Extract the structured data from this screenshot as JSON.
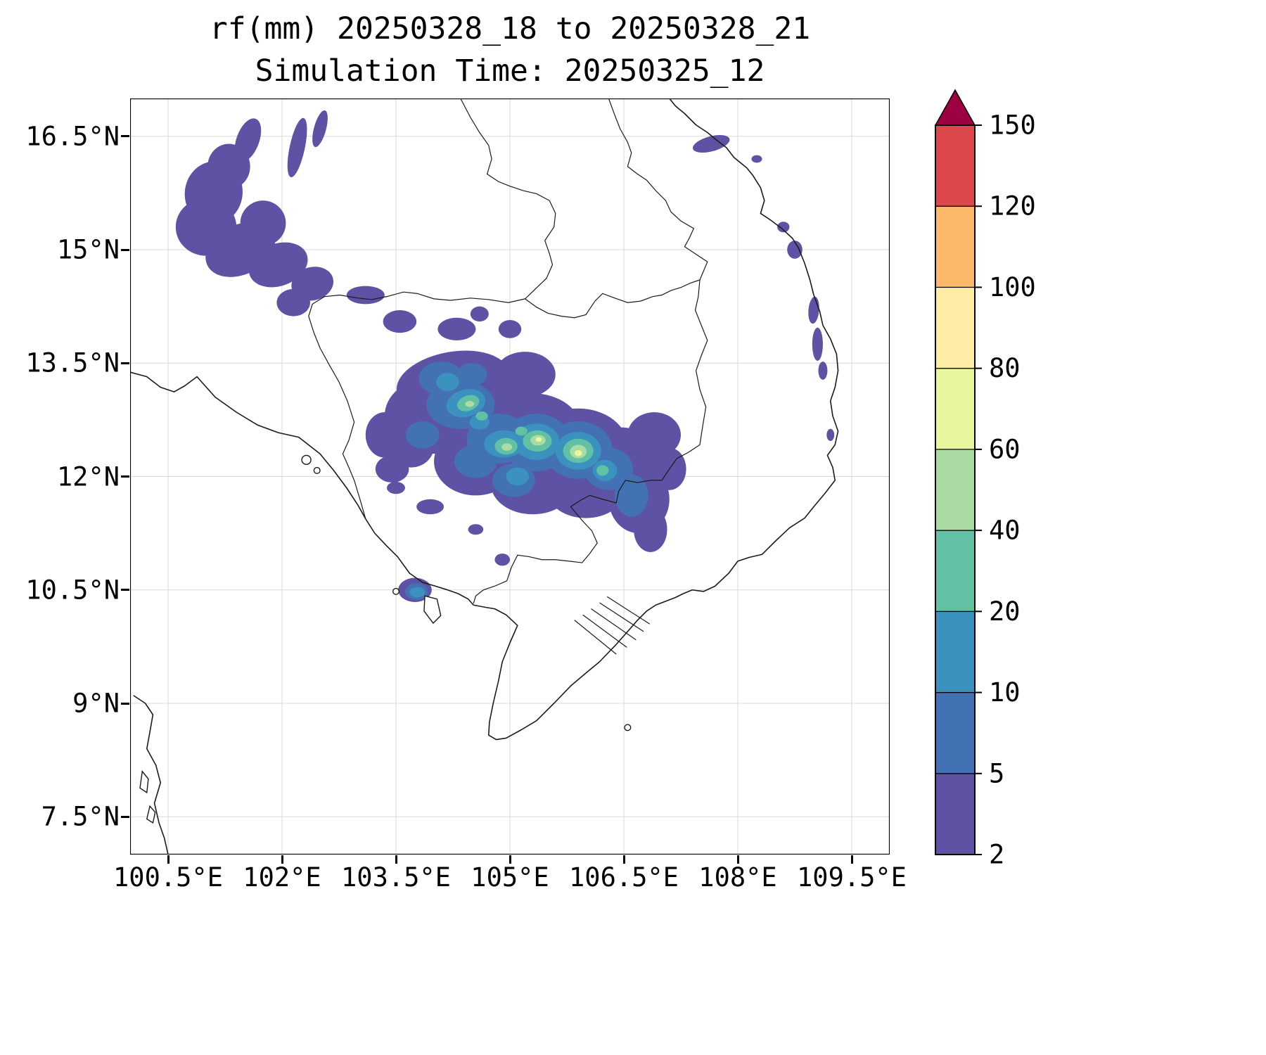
{
  "figure": {
    "title": "rf(mm) 20250328_18 to 20250328_21",
    "subtitle": "Simulation Time: 20250325_12"
  },
  "axes": {
    "x_ticks": [
      {
        "value": 100.5,
        "label": "100.5°E"
      },
      {
        "value": 102,
        "label": "102°E"
      },
      {
        "value": 103.5,
        "label": "103.5°E"
      },
      {
        "value": 105,
        "label": "105°E"
      },
      {
        "value": 106.5,
        "label": "106.5°E"
      },
      {
        "value": 108,
        "label": "108°E"
      },
      {
        "value": 109.5,
        "label": "109.5°E"
      }
    ],
    "y_ticks": [
      {
        "value": 16.5,
        "label": "16.5°N"
      },
      {
        "value": 15,
        "label": "15°N"
      },
      {
        "value": 13.5,
        "label": "13.5°N"
      },
      {
        "value": 12,
        "label": "12°N"
      },
      {
        "value": 10.5,
        "label": "10.5°N"
      },
      {
        "value": 9,
        "label": "9°N"
      },
      {
        "value": 7.5,
        "label": "7.5°N"
      }
    ]
  },
  "colorbar": {
    "tick_labels": [
      "2",
      "5",
      "10",
      "20",
      "40",
      "60",
      "80",
      "100",
      "120",
      "150"
    ],
    "band_colors": [
      "#5e52a5",
      "#4272b4",
      "#3c92be",
      "#62c0a5",
      "#a9dba3",
      "#e9f69d",
      "#feeda4",
      "#fdb96b",
      "#dc484c"
    ],
    "over_color": "#9e0142"
  },
  "chart_data": {
    "type": "heatmap",
    "subtype": "filled-contour-precipitation-map",
    "variable": "rf",
    "units": "mm",
    "title": "rf(mm) 20250328_18 to 20250328_21",
    "subtitle": "Simulation Time: 20250325_12",
    "valid_period": "20250328_18 to 20250328_21",
    "simulation_time": "20250325_12",
    "lon_range": [
      100,
      110
    ],
    "lat_range": [
      7,
      17
    ],
    "grid": "on",
    "legend_position": "right-colorbar",
    "contour_levels": [
      2,
      5,
      10,
      20,
      40,
      60,
      80,
      100,
      120,
      150
    ],
    "max_shaded_band_mm": "60-80",
    "cell_format": [
      "lon_deg_e",
      "lat_deg_n",
      "rx_deg",
      "ry_deg",
      "rotation_deg",
      "min_mm"
    ],
    "rain_cells": [
      [
        101.55,
        16.45,
        0.15,
        0.3,
        20,
        2
      ],
      [
        101.3,
        16.1,
        0.28,
        0.3,
        0,
        2
      ],
      [
        101.1,
        15.75,
        0.38,
        0.42,
        10,
        2
      ],
      [
        101.0,
        15.3,
        0.4,
        0.38,
        0,
        2
      ],
      [
        101.45,
        15.0,
        0.48,
        0.33,
        -25,
        2
      ],
      [
        101.95,
        14.8,
        0.4,
        0.28,
        -20,
        2
      ],
      [
        102.4,
        14.55,
        0.28,
        0.22,
        -15,
        2
      ],
      [
        101.75,
        15.35,
        0.3,
        0.3,
        0,
        2
      ],
      [
        102.2,
        16.35,
        0.1,
        0.4,
        12,
        2
      ],
      [
        102.5,
        16.6,
        0.08,
        0.25,
        15,
        2
      ],
      [
        102.15,
        14.3,
        0.22,
        0.18,
        0,
        2
      ],
      [
        103.1,
        14.4,
        0.25,
        0.12,
        0,
        2
      ],
      [
        103.55,
        14.05,
        0.22,
        0.15,
        0,
        2
      ],
      [
        104.3,
        13.95,
        0.25,
        0.15,
        0,
        2
      ],
      [
        104.6,
        14.15,
        0.12,
        0.1,
        0,
        2
      ],
      [
        105.0,
        13.95,
        0.15,
        0.12,
        0,
        2
      ],
      [
        104.25,
        13.25,
        0.75,
        0.4,
        -10,
        2
      ],
      [
        103.95,
        12.8,
        0.6,
        0.5,
        0,
        2
      ],
      [
        104.75,
        12.9,
        0.6,
        0.5,
        0,
        2
      ],
      [
        105.3,
        12.6,
        0.65,
        0.5,
        0,
        2
      ],
      [
        105.9,
        12.4,
        0.65,
        0.5,
        0,
        2
      ],
      [
        106.45,
        12.2,
        0.55,
        0.45,
        0,
        2
      ],
      [
        104.55,
        12.2,
        0.55,
        0.45,
        0,
        2
      ],
      [
        105.3,
        11.9,
        0.55,
        0.4,
        0,
        2
      ],
      [
        106.0,
        11.8,
        0.5,
        0.35,
        0,
        2
      ],
      [
        106.7,
        11.7,
        0.4,
        0.45,
        0,
        2
      ],
      [
        106.85,
        11.3,
        0.22,
        0.3,
        0,
        2
      ],
      [
        103.7,
        12.4,
        0.3,
        0.28,
        0,
        2
      ],
      [
        103.45,
        12.1,
        0.22,
        0.18,
        0,
        2
      ],
      [
        103.35,
        12.55,
        0.25,
        0.3,
        0,
        2
      ],
      [
        106.9,
        12.55,
        0.35,
        0.3,
        0,
        2
      ],
      [
        107.1,
        12.1,
        0.22,
        0.28,
        0,
        2
      ],
      [
        105.2,
        13.35,
        0.4,
        0.3,
        0,
        2
      ],
      [
        103.5,
        11.85,
        0.12,
        0.08,
        0,
        2
      ],
      [
        103.95,
        11.6,
        0.18,
        0.1,
        0,
        2
      ],
      [
        104.55,
        11.3,
        0.1,
        0.07,
        0,
        2
      ],
      [
        104.9,
        10.9,
        0.1,
        0.08,
        0,
        2
      ],
      [
        103.75,
        10.5,
        0.22,
        0.16,
        0,
        2
      ],
      [
        107.65,
        16.4,
        0.25,
        0.1,
        -15,
        2
      ],
      [
        108.25,
        16.2,
        0.07,
        0.05,
        0,
        2
      ],
      [
        108.75,
        15.0,
        0.1,
        0.12,
        0,
        2
      ],
      [
        108.6,
        15.3,
        0.08,
        0.07,
        0,
        2
      ],
      [
        109.0,
        14.2,
        0.07,
        0.18,
        5,
        2
      ],
      [
        109.05,
        13.75,
        0.07,
        0.22,
        0,
        2
      ],
      [
        109.12,
        13.4,
        0.06,
        0.12,
        0,
        2
      ],
      [
        109.22,
        12.55,
        0.05,
        0.08,
        0,
        2
      ],
      [
        104.35,
        12.95,
        0.45,
        0.32,
        0,
        5
      ],
      [
        104.1,
        13.3,
        0.3,
        0.22,
        0,
        5
      ],
      [
        104.85,
        12.5,
        0.42,
        0.33,
        0,
        5
      ],
      [
        105.35,
        12.45,
        0.45,
        0.38,
        0,
        5
      ],
      [
        105.9,
        12.35,
        0.45,
        0.38,
        0,
        5
      ],
      [
        106.3,
        12.1,
        0.32,
        0.28,
        0,
        5
      ],
      [
        104.55,
        12.2,
        0.28,
        0.22,
        0,
        5
      ],
      [
        105.05,
        11.95,
        0.28,
        0.22,
        0,
        5
      ],
      [
        103.85,
        12.55,
        0.22,
        0.18,
        0,
        5
      ],
      [
        106.6,
        11.75,
        0.22,
        0.28,
        0,
        5
      ],
      [
        104.5,
        13.35,
        0.2,
        0.15,
        0,
        5
      ],
      [
        103.77,
        10.48,
        0.15,
        0.11,
        0,
        5
      ],
      [
        104.42,
        12.97,
        0.26,
        0.18,
        -15,
        10
      ],
      [
        104.18,
        13.25,
        0.15,
        0.12,
        0,
        10
      ],
      [
        104.92,
        12.43,
        0.26,
        0.18,
        0,
        10
      ],
      [
        105.35,
        12.46,
        0.3,
        0.24,
        0,
        10
      ],
      [
        105.9,
        12.34,
        0.3,
        0.25,
        0,
        10
      ],
      [
        106.25,
        12.08,
        0.16,
        0.14,
        0,
        10
      ],
      [
        105.1,
        12.0,
        0.15,
        0.12,
        0,
        10
      ],
      [
        104.6,
        12.72,
        0.13,
        0.1,
        0,
        10
      ],
      [
        103.78,
        10.47,
        0.1,
        0.07,
        0,
        10
      ],
      [
        104.45,
        12.97,
        0.15,
        0.1,
        -20,
        20
      ],
      [
        104.95,
        12.4,
        0.15,
        0.11,
        0,
        20
      ],
      [
        105.36,
        12.47,
        0.19,
        0.14,
        0,
        20
      ],
      [
        105.9,
        12.34,
        0.2,
        0.16,
        0,
        20
      ],
      [
        105.15,
        12.6,
        0.08,
        0.06,
        0,
        20
      ],
      [
        104.63,
        12.8,
        0.08,
        0.06,
        0,
        20
      ],
      [
        106.22,
        12.08,
        0.08,
        0.07,
        0,
        20
      ],
      [
        105.37,
        12.48,
        0.1,
        0.07,
        0,
        40
      ],
      [
        105.9,
        12.33,
        0.11,
        0.09,
        0,
        40
      ],
      [
        104.96,
        12.39,
        0.07,
        0.05,
        0,
        40
      ],
      [
        104.47,
        12.96,
        0.06,
        0.04,
        0,
        40
      ],
      [
        105.9,
        12.31,
        0.05,
        0.04,
        0,
        60
      ],
      [
        105.38,
        12.49,
        0.04,
        0.03,
        0,
        60
      ]
    ]
  }
}
